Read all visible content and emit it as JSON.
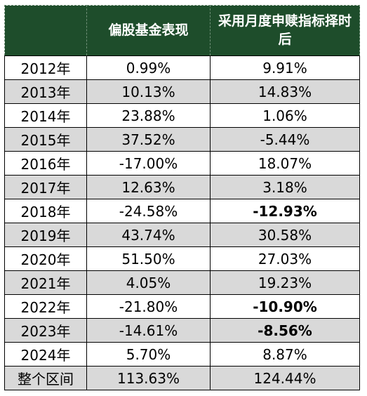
{
  "table": {
    "headers": [
      "",
      "偏股基金表现",
      "采用月度申赎指标择时后"
    ],
    "rows": [
      {
        "label": "2012年",
        "fund": "0.99%",
        "timed": "9.91%",
        "timed_bold": false
      },
      {
        "label": "2013年",
        "fund": "10.13%",
        "timed": "14.83%",
        "timed_bold": false
      },
      {
        "label": "2014年",
        "fund": "23.88%",
        "timed": "1.06%",
        "timed_bold": false
      },
      {
        "label": "2015年",
        "fund": "37.52%",
        "timed": "-5.44%",
        "timed_bold": false
      },
      {
        "label": "2016年",
        "fund": "-17.00%",
        "timed": "18.07%",
        "timed_bold": false
      },
      {
        "label": "2017年",
        "fund": "12.63%",
        "timed": "3.18%",
        "timed_bold": false
      },
      {
        "label": "2018年",
        "fund": "-24.58%",
        "timed": "-12.93%",
        "timed_bold": true
      },
      {
        "label": "2019年",
        "fund": "43.74%",
        "timed": "30.58%",
        "timed_bold": false
      },
      {
        "label": "2020年",
        "fund": "51.50%",
        "timed": "27.03%",
        "timed_bold": false
      },
      {
        "label": "2021年",
        "fund": "4.05%",
        "timed": "19.23%",
        "timed_bold": false
      },
      {
        "label": "2022年",
        "fund": "-21.80%",
        "timed": "-10.90%",
        "timed_bold": true
      },
      {
        "label": "2023年",
        "fund": "-14.61%",
        "timed": "-8.56%",
        "timed_bold": true
      },
      {
        "label": "2024年",
        "fund": "5.70%",
        "timed": "8.87%",
        "timed_bold": false
      },
      {
        "label": "整个区间",
        "fund": "113.63%",
        "timed": "124.44%",
        "timed_bold": false
      }
    ]
  },
  "colors": {
    "header_bg": "#1e4d2b",
    "header_text": "#ffffff",
    "stripe": "#d9d9d9"
  }
}
